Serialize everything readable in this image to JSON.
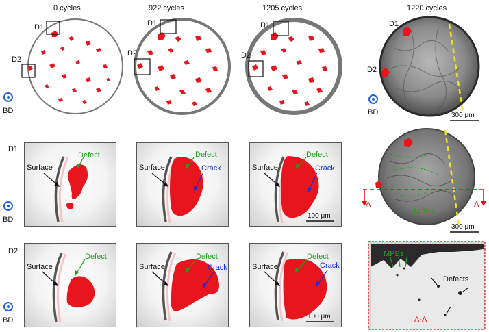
{
  "cycle_labels": [
    "0 cycles",
    "922 cycles",
    "1205 cycles",
    "1220 cycles"
  ],
  "region_labels": {
    "d1": "D1",
    "d2": "D2"
  },
  "build_direction": "BD",
  "annotations": {
    "surface": "Surface",
    "defect": "Defect",
    "defects": "Defects",
    "crack": "Crack",
    "mpbs": "MPBs",
    "section_marker": "A",
    "section_label": "A-A"
  },
  "scale_bars": {
    "large": "300 μm",
    "small": "100 μm"
  },
  "colors": {
    "defect_red": "#e8141e",
    "arrow_green": "#1aa31a",
    "arrow_blue": "#1530d8",
    "bd_blue": "#1f5fd6",
    "section_red": "#e01010",
    "dashed_yellow": "#f2e21a"
  }
}
